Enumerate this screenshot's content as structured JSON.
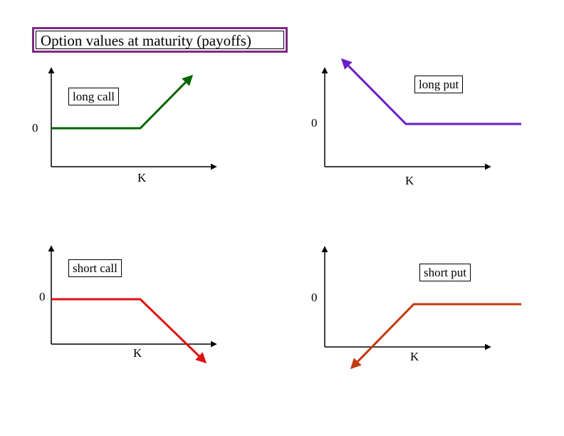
{
  "title": "Option values at maturity (payoffs)",
  "colors": {
    "long_call": "#006600",
    "long_put": "#6a1ec8",
    "short_call": "#e01010",
    "short_put": "#c03a10",
    "title_border": "#7f2a84"
  },
  "panels": {
    "long_call": {
      "label": "long call",
      "zero": "0",
      "strike": "K"
    },
    "long_put": {
      "label": "long put",
      "zero": "0",
      "strike": "K"
    },
    "short_call": {
      "label": "short call",
      "zero": "0",
      "strike": "K"
    },
    "short_put": {
      "label": "short put",
      "zero": "0",
      "strike": "K"
    }
  }
}
